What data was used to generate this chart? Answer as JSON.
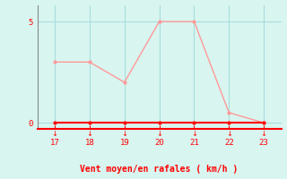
{
  "x": [
    17,
    18,
    19,
    20,
    21,
    22,
    23
  ],
  "y_rafales": [
    3,
    3,
    2,
    5,
    5,
    0.5,
    0
  ],
  "y_moyen": [
    0,
    0,
    0,
    0,
    0,
    0,
    0
  ],
  "line_color_rafales": "#FF9999",
  "line_color_moyen": "#FF0000",
  "marker_color_rafales": "#FF9999",
  "marker_color_moyen": "#FF0000",
  "background_color": "#D8F5F0",
  "grid_color": "#AADDDD",
  "spine_color": "#888888",
  "bottom_line_color": "#FF0000",
  "xlabel": "Vent moyen/en rafales ( km/h )",
  "xlabel_color": "#FF0000",
  "tick_color": "#FF0000",
  "yticks": [
    0,
    5
  ],
  "xlim": [
    16.5,
    23.5
  ],
  "ylim": [
    -0.3,
    5.8
  ],
  "title": ""
}
